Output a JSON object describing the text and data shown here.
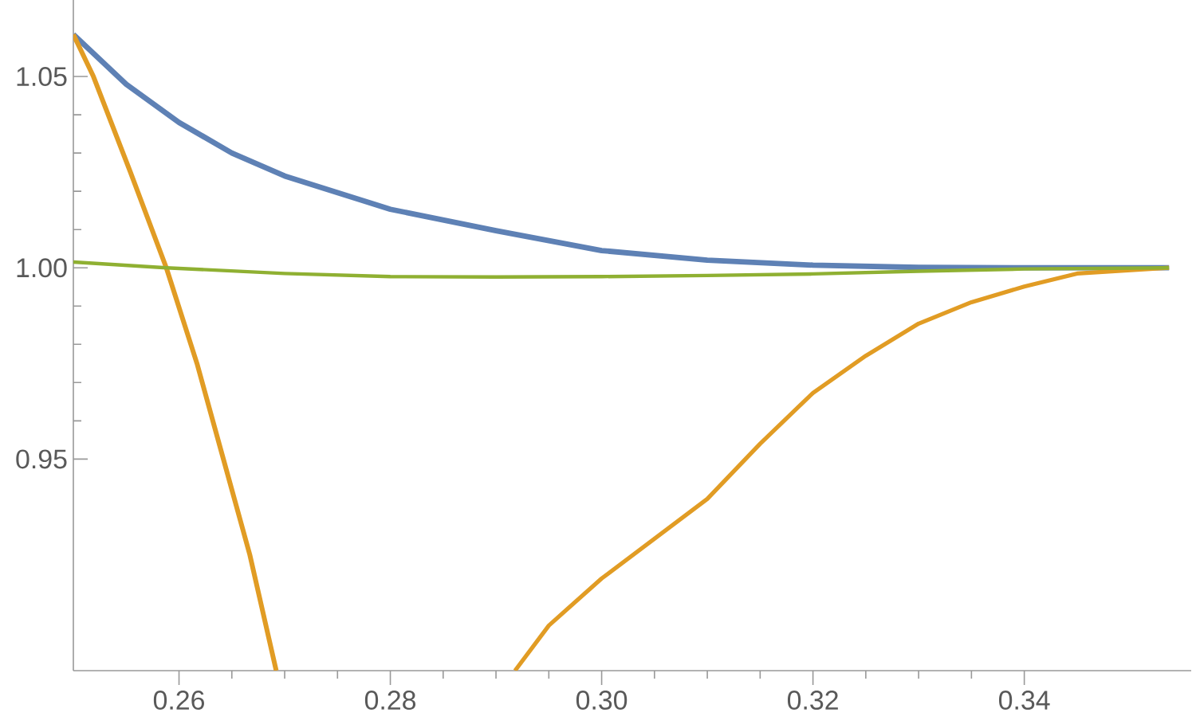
{
  "chart_data": {
    "type": "line",
    "xlim": [
      0.25,
      0.3558
    ],
    "ylim": [
      0.8947,
      1.07
    ],
    "xticks": [
      {
        "value": 0.26,
        "label": "0.26"
      },
      {
        "value": 0.28,
        "label": "0.28"
      },
      {
        "value": 0.3,
        "label": "0.30"
      },
      {
        "value": 0.32,
        "label": "0.32"
      },
      {
        "value": 0.34,
        "label": "0.34"
      }
    ],
    "yticks": [
      {
        "value": 0.95,
        "label": "0.95"
      },
      {
        "value": 1.0,
        "label": "1.00"
      },
      {
        "value": 1.05,
        "label": "1.05"
      }
    ],
    "series": [
      {
        "color": "#5e81b5",
        "x": [
          0.25,
          0.255,
          0.26,
          0.265,
          0.27,
          0.28,
          0.29,
          0.3,
          0.31,
          0.32,
          0.33,
          0.34,
          0.3537
        ],
        "values": [
          1.061,
          1.048,
          1.038,
          1.03,
          1.024,
          1.0153,
          1.0097,
          1.0045,
          1.002,
          1.0007,
          1.0001,
          1.0,
          1.0
        ]
      },
      {
        "color": "#e19c24",
        "x": [
          0.25,
          0.2519,
          0.2554,
          0.2588,
          0.2617,
          0.2642,
          0.2667,
          0.2692
        ],
        "values": [
          1.061,
          1.05,
          1.025,
          1.0,
          0.975,
          0.95,
          0.925,
          0.8947
        ]
      },
      {
        "color": "#e19c24",
        "x": [
          0.2918,
          0.295,
          0.3,
          0.31,
          0.315,
          0.32,
          0.325,
          0.33,
          0.335,
          0.34,
          0.345,
          0.3537
        ],
        "values": [
          0.8947,
          0.9065,
          0.9188,
          0.9396,
          0.954,
          0.9673,
          0.977,
          0.9854,
          0.991,
          0.9951,
          0.9985,
          1.0
        ]
      },
      {
        "color": "#8fb032",
        "x": [
          0.25,
          0.2588,
          0.27,
          0.28,
          0.29,
          0.3,
          0.31,
          0.32,
          0.33,
          0.34,
          0.3537
        ],
        "values": [
          1.0015,
          1.0,
          0.9985,
          0.9977,
          0.9976,
          0.9977,
          0.998,
          0.9984,
          0.9991,
          0.9997,
          1.0
        ]
      }
    ]
  }
}
